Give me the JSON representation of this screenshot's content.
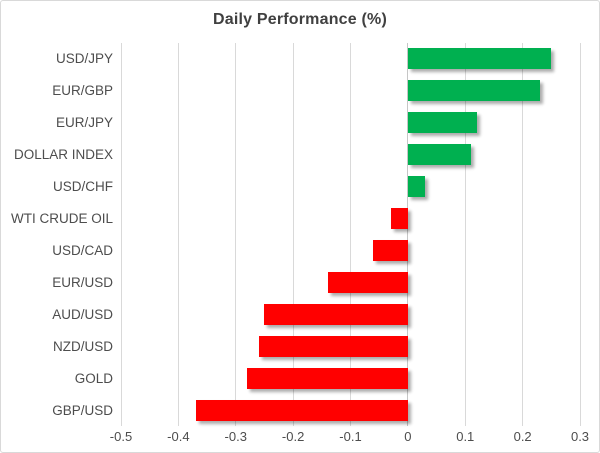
{
  "chart_data": {
    "type": "bar",
    "orientation": "horizontal",
    "title": "Daily Performance (%)",
    "categories": [
      "USD/JPY",
      "EUR/GBP",
      "EUR/JPY",
      "DOLLAR INDEX",
      "USD/CHF",
      "WTI CRUDE OIL",
      "USD/CAD",
      "EUR/USD",
      "AUD/USD",
      "NZD/USD",
      "GOLD",
      "GBP/USD"
    ],
    "values": [
      0.25,
      0.23,
      0.12,
      0.11,
      0.03,
      -0.03,
      -0.06,
      -0.14,
      -0.25,
      -0.26,
      -0.28,
      -0.37
    ],
    "xlim": [
      -0.5,
      0.3
    ],
    "x_ticks": [
      -0.5,
      -0.4,
      -0.3,
      -0.2,
      -0.1,
      0,
      0.1,
      0.2,
      0.3
    ],
    "x_tick_labels": [
      "-0.5",
      "-0.4",
      "-0.3",
      "-0.2",
      "-0.1",
      "0",
      "0.1",
      "0.2",
      "0.3"
    ],
    "grid": "vertical",
    "legend": "none",
    "colors": {
      "positive": "#00B050",
      "negative": "#FF0000",
      "gridline": "#D9D9D9",
      "title_text": "#404040",
      "axis_text": "#4D4D4D"
    }
  }
}
